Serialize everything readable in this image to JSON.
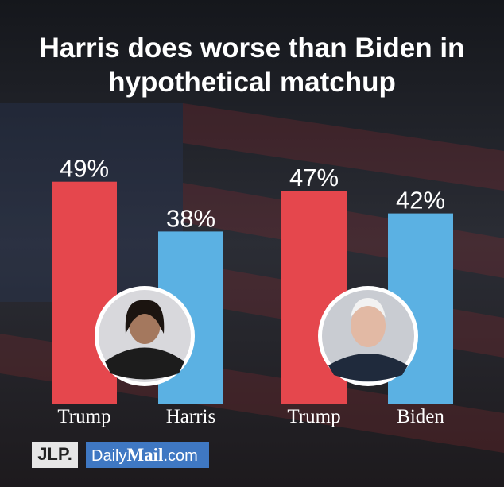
{
  "title": [
    "Harris does worse than Biden in",
    "hypothetical matchup"
  ],
  "chart_data": [
    {
      "type": "bar",
      "categories": [
        "Trump",
        "Harris"
      ],
      "values": [
        49,
        38
      ],
      "value_labels": [
        "49%",
        "38%"
      ],
      "colors": [
        "#e5474d",
        "#5bb1e3"
      ]
    },
    {
      "type": "bar",
      "categories": [
        "Trump",
        "Biden"
      ],
      "values": [
        47,
        42
      ],
      "value_labels": [
        "47%",
        "42%"
      ],
      "colors": [
        "#e5474d",
        "#5bb1e3"
      ]
    }
  ],
  "source": "JLP.",
  "publisher": [
    "Daily",
    "Mail",
    ".com"
  ]
}
